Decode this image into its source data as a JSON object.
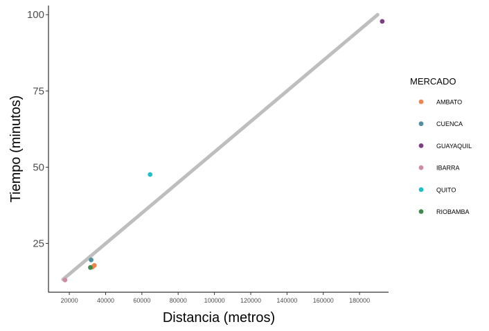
{
  "chart_data": {
    "type": "scatter",
    "xlabel": "Distancia (metros)",
    "ylabel": "Tiempo (minutos)",
    "xlim": [
      8500,
      196000
    ],
    "ylim": [
      9,
      103
    ],
    "xticks": [
      20000,
      40000,
      60000,
      80000,
      100000,
      120000,
      140000,
      160000,
      180000
    ],
    "yticks": [
      25,
      50,
      75,
      100
    ],
    "grid": false,
    "legend_position": "right",
    "legend": {
      "title": "MERCADO",
      "entries": [
        {
          "name": "AMBATO",
          "color": "#ee8550"
        },
        {
          "name": "CUENCA",
          "color": "#4f91a0"
        },
        {
          "name": "GUAYAQUIL",
          "color": "#7d3d82"
        },
        {
          "name": "IBARRA",
          "color": "#d08ba0"
        },
        {
          "name": "QUITO",
          "color": "#1fc1c8"
        },
        {
          "name": "RIOBAMBA",
          "color": "#3d8a4c"
        }
      ]
    },
    "series": [
      {
        "name": "AMBATO",
        "points": [
          [
            33800,
            17.8
          ],
          [
            32800,
            17.3
          ]
        ]
      },
      {
        "name": "CUENCA",
        "points": [
          [
            32000,
            19.6
          ]
        ]
      },
      {
        "name": "GUAYAQUIL",
        "points": [
          [
            192500,
            97.8
          ]
        ]
      },
      {
        "name": "IBARRA",
        "points": [
          [
            17600,
            13.0
          ]
        ]
      },
      {
        "name": "QUITO",
        "points": [
          [
            64500,
            47.6
          ]
        ]
      },
      {
        "name": "RIOBAMBA",
        "points": [
          [
            31600,
            17.1
          ]
        ]
      }
    ],
    "trend_line": {
      "color": "#bebebe",
      "points": [
        [
          16500,
          13.2
        ],
        [
          190000,
          100.0
        ]
      ]
    }
  }
}
